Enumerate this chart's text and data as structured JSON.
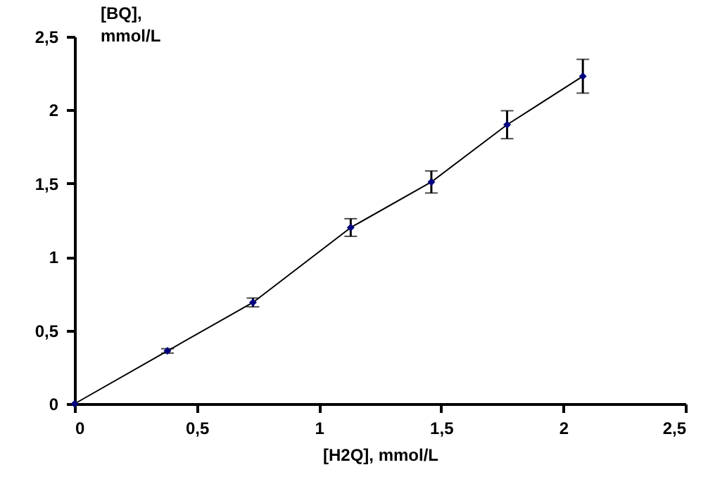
{
  "chart_data": {
    "type": "line",
    "xlabel": "[H2Q], mmol/L",
    "ylabel": "[BQ], mmol/L",
    "x": [
      0,
      0.38,
      0.73,
      1.13,
      1.46,
      1.77,
      2.08
    ],
    "series": [
      {
        "color": "#000080",
        "values": [
          0,
          0.36,
          0.69,
          1.2,
          1.51,
          1.9,
          2.23
        ],
        "errors": [
          null,
          0.015,
          0.03,
          0.06,
          0.075,
          0.095,
          0.115
        ]
      }
    ],
    "xlim": [
      0,
      2.5
    ],
    "ylim": [
      0,
      2.5
    ],
    "xticks": [
      0,
      {
        "value": 0.5,
        "label": "0,5"
      },
      1,
      {
        "value": 1.5,
        "label": "1,5"
      },
      2,
      {
        "value": 2.5,
        "label": "2,5"
      }
    ],
    "yticks": [
      0,
      {
        "value": 0.5,
        "label": "0,5"
      },
      1,
      {
        "value": 1.5,
        "label": "1,5"
      },
      2,
      {
        "value": 2.5,
        "label": "2,5"
      }
    ],
    "grid": false,
    "marker": "diamond",
    "line_style": "solid"
  }
}
